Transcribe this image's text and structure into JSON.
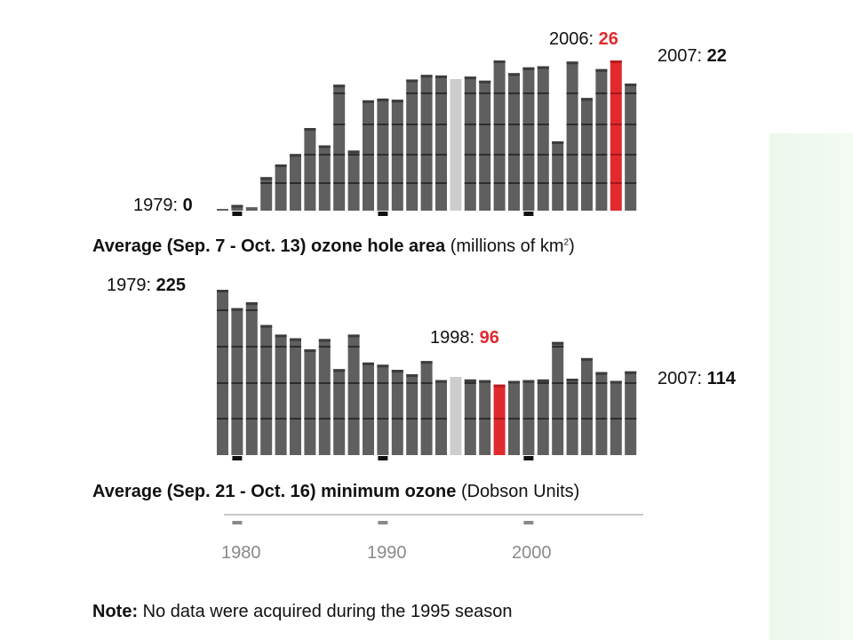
{
  "colors": {
    "bar": "#5f5f5f",
    "bar_cap": "#3c3c3c",
    "highlight": "#e02a2e",
    "missing": "#cdcdcd",
    "gridline": "#2d2d2d",
    "axis_line": "#c8c8c8",
    "tick": "#8a8a8a",
    "decade_marker": "#111111"
  },
  "chart_data": [
    {
      "type": "bar",
      "title": "Average (Sep. 7 - Oct. 13) ozone hole area",
      "title_bold": "Average (Sep. 7 - Oct. 13) ozone hole area",
      "title_unit_prefix": "(millions of km",
      "title_unit_sup": "2",
      "title_unit_suffix": ")",
      "x": [
        1979,
        1980,
        1981,
        1982,
        1983,
        1984,
        1985,
        1986,
        1987,
        1988,
        1989,
        1990,
        1991,
        1992,
        1993,
        1994,
        1995,
        1996,
        1997,
        1998,
        1999,
        2000,
        2001,
        2002,
        2003,
        2004,
        2005,
        2006,
        2007
      ],
      "values": [
        0.1,
        1.0,
        0.6,
        5.8,
        8.0,
        9.8,
        14.3,
        11.3,
        21.8,
        10.4,
        19.1,
        19.4,
        19.2,
        22.7,
        23.5,
        23.4,
        null,
        23.2,
        22.5,
        26.0,
        23.8,
        24.8,
        25.0,
        12.0,
        25.8,
        19.5,
        24.5,
        26.0,
        22.0
      ],
      "highlight_year": 2006,
      "missing_year": 1995,
      "ylim": [
        0,
        26
      ],
      "annotations": {
        "start_year": "1979:",
        "start_value": "0",
        "peak_year": "2006:",
        "peak_value": "26",
        "end_year": "2007:",
        "end_value": "22"
      }
    },
    {
      "type": "bar",
      "title_bold": "Average (Sep. 21 - Oct. 16) minimum ozone",
      "title_unit": "(Dobson Units)",
      "x": [
        1979,
        1980,
        1981,
        1982,
        1983,
        1984,
        1985,
        1986,
        1987,
        1988,
        1989,
        1990,
        1991,
        1992,
        1993,
        1994,
        1995,
        1996,
        1997,
        1998,
        1999,
        2000,
        2001,
        2002,
        2003,
        2004,
        2005,
        2006,
        2007
      ],
      "values": [
        225,
        200,
        208,
        177,
        164,
        159,
        144,
        158,
        117,
        164,
        126,
        123,
        116,
        110,
        128,
        102,
        null,
        103,
        102,
        96,
        101,
        102,
        103,
        154,
        104,
        132,
        113,
        101,
        114
      ],
      "highlight_year": 1998,
      "missing_year": 1995,
      "ylim": [
        0,
        225
      ],
      "annotations": {
        "start_year": "1979:",
        "start_value": "225",
        "low_year": "1998:",
        "low_value": "96",
        "end_year": "2007:",
        "end_value": "114"
      }
    }
  ],
  "x_axis": {
    "ticks": [
      "1980",
      "1990",
      "2000"
    ]
  },
  "note": {
    "label": "Note:",
    "text": " No data were acquired during the 1995 season"
  }
}
